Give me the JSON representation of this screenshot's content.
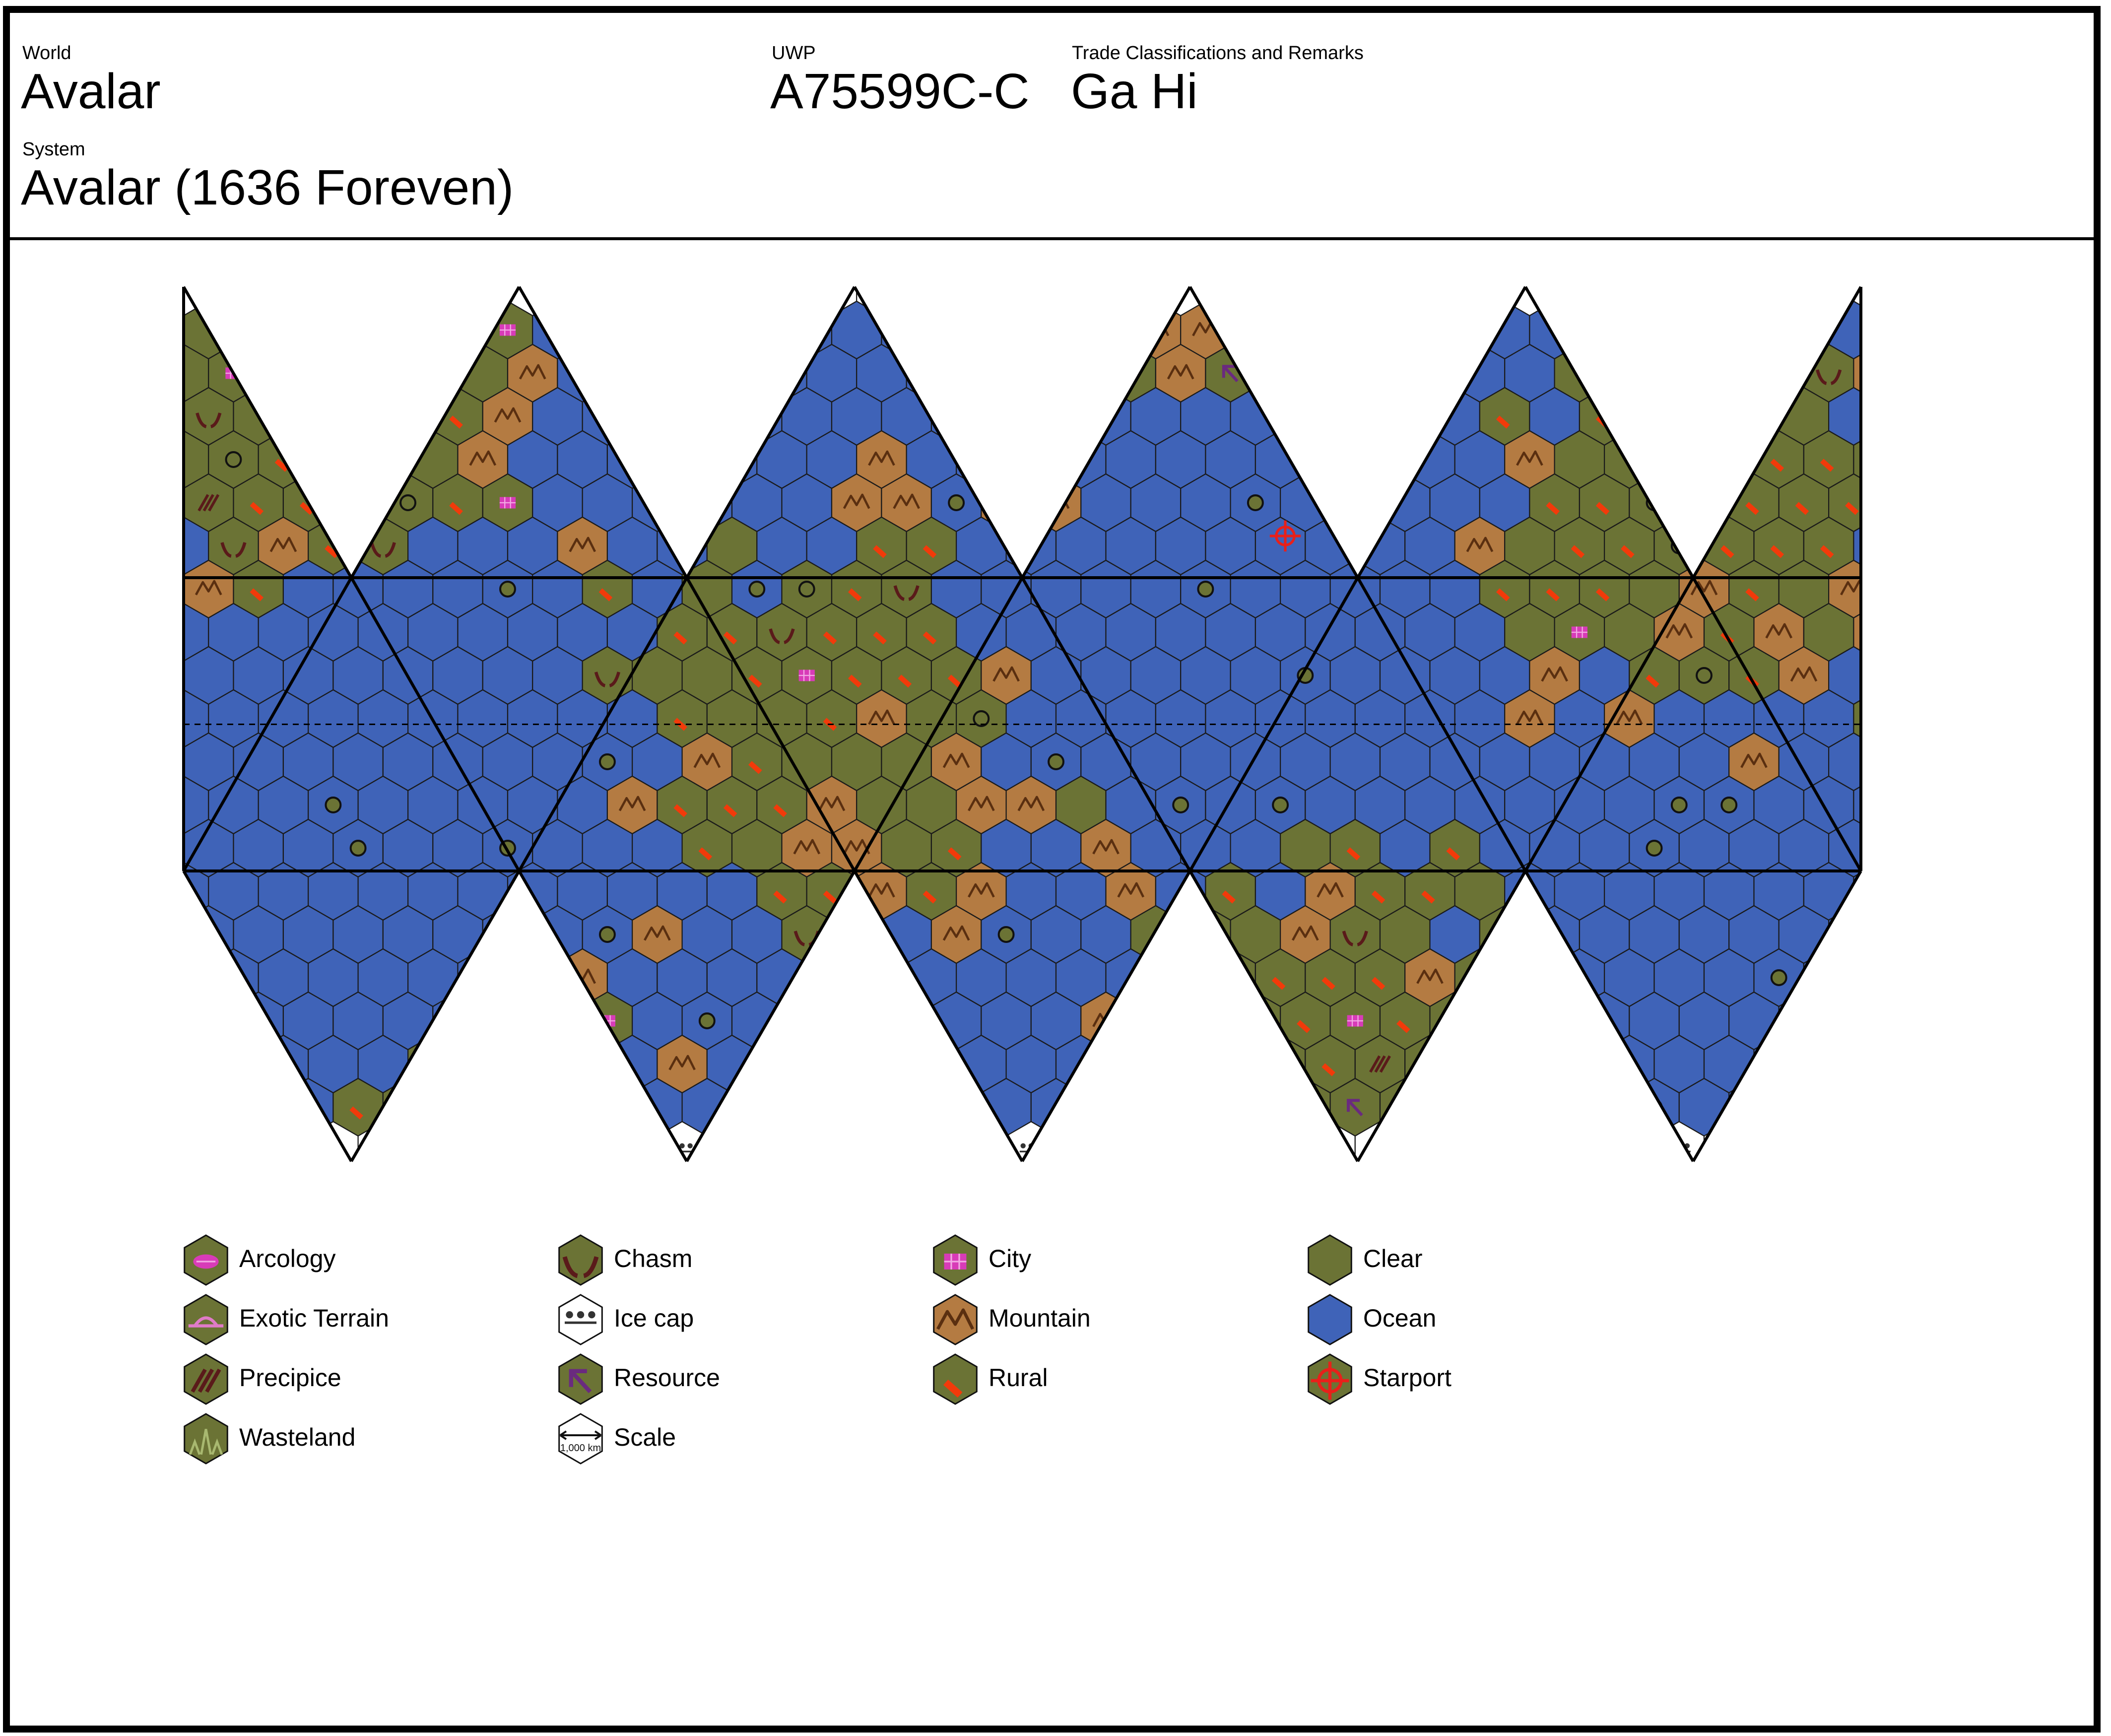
{
  "header": {
    "world_label": "World",
    "world_name": "Avalar",
    "uwp_label": "UWP",
    "uwp_value": "A75599C-C",
    "trade_label": "Trade Classifications and Remarks",
    "trade_value": "Ga Hi",
    "system_label": "System",
    "system_value": "Avalar (1636 Foreven)"
  },
  "map": {
    "projection": "icosahedral",
    "columns": 5,
    "colors": {
      "ocean": "#3F63B8",
      "clear": "#6B7335",
      "mountain": "#B47B42",
      "ice": "#FFFFFF",
      "rural_accent": "#F23A0A",
      "city_marker": "#D83BB8",
      "resource_marker": "#6A2A7F",
      "feature_brown": "#5A1A1A",
      "starport": "#E8201A"
    }
  },
  "legend": {
    "items": [
      {
        "label": "Arcology",
        "icon": "arcology-icon"
      },
      {
        "label": "Chasm",
        "icon": "chasm-icon"
      },
      {
        "label": "City",
        "icon": "city-icon"
      },
      {
        "label": "Clear",
        "icon": "clear-icon"
      },
      {
        "label": "Exotic Terrain",
        "icon": "exotic-terrain-icon"
      },
      {
        "label": "Ice cap",
        "icon": "ice-cap-icon"
      },
      {
        "label": "Mountain",
        "icon": "mountain-icon"
      },
      {
        "label": "Ocean",
        "icon": "ocean-icon"
      },
      {
        "label": "Precipice",
        "icon": "precipice-icon"
      },
      {
        "label": "Resource",
        "icon": "resource-icon"
      },
      {
        "label": "Rural",
        "icon": "rural-icon"
      },
      {
        "label": "Starport",
        "icon": "starport-icon"
      },
      {
        "label": "Wasteland",
        "icon": "wasteland-icon"
      },
      {
        "label": "Scale",
        "icon": "scale-icon",
        "note": "1,000 km"
      }
    ]
  }
}
